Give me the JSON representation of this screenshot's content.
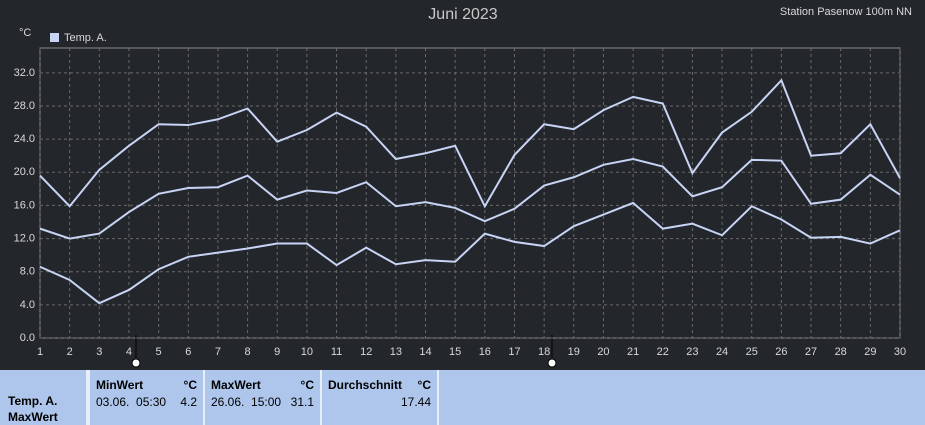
{
  "chart_data": {
    "type": "line",
    "title": "Juni 2023",
    "subtitle": "Station Pasenow 100m NN",
    "y_label": "°C",
    "x": [
      1,
      2,
      3,
      4,
      5,
      6,
      7,
      8,
      9,
      10,
      11,
      12,
      13,
      14,
      15,
      16,
      17,
      18,
      19,
      20,
      21,
      22,
      23,
      24,
      25,
      26,
      27,
      28,
      29,
      30
    ],
    "series": [
      {
        "name": "Temp. A.",
        "color": "#c8d4f5",
        "values": [
          19.6,
          15.9,
          20.3,
          23.2,
          25.8,
          25.7,
          26.4,
          27.7,
          23.7,
          25.1,
          27.2,
          25.5,
          21.6,
          22.3,
          23.2,
          15.9,
          22.1,
          25.8,
          25.2,
          27.5,
          29.1,
          28.3,
          19.9,
          24.8,
          27.3,
          31.1,
          22.0,
          22.3,
          25.8,
          19.3
        ]
      },
      {
        "color": "#c8d4f5",
        "values": [
          13.2,
          12.0,
          12.6,
          15.2,
          17.4,
          18.1,
          18.2,
          19.6,
          16.7,
          17.8,
          17.5,
          18.8,
          15.9,
          16.4,
          15.7,
          14.1,
          15.6,
          18.4,
          19.4,
          20.9,
          21.6,
          20.7,
          17.1,
          18.2,
          21.5,
          21.4,
          16.2,
          16.7,
          19.7,
          17.3
        ]
      },
      {
        "color": "#c8d4f5",
        "values": [
          8.6,
          7.0,
          4.2,
          5.8,
          8.3,
          9.8,
          10.3,
          10.8,
          11.4,
          11.4,
          8.8,
          10.9,
          8.9,
          9.4,
          9.2,
          12.6,
          11.6,
          11.1,
          13.5,
          14.9,
          16.3,
          13.2,
          13.8,
          12.4,
          15.9,
          14.3,
          12.1,
          12.2,
          11.4,
          13.0
        ]
      }
    ],
    "xlim": [
      1,
      30
    ],
    "ylim": [
      0,
      35
    ],
    "xticks": [
      1,
      2,
      3,
      4,
      5,
      6,
      7,
      8,
      9,
      10,
      11,
      12,
      13,
      14,
      15,
      16,
      17,
      18,
      19,
      20,
      21,
      22,
      23,
      24,
      25,
      26,
      27,
      28,
      29,
      30
    ],
    "yticks": [
      {
        "value": 0,
        "label": "0.0"
      },
      {
        "value": 4,
        "label": "4.0"
      },
      {
        "value": 8,
        "label": "8.0"
      },
      {
        "value": 12,
        "label": "12.0"
      },
      {
        "value": 16,
        "label": "16.0"
      },
      {
        "value": 20,
        "label": "20.0"
      },
      {
        "value": 24,
        "label": "24.0"
      },
      {
        "value": 28,
        "label": "28.0"
      },
      {
        "value": 32,
        "label": "32.0"
      }
    ],
    "grid": true
  },
  "summary": {
    "series_label": "Temp. A.",
    "row_label": "MaxWert",
    "columns": [
      {
        "title": "MinWert",
        "unit": "°C",
        "time": "03.06.  05:30",
        "value": 4.2
      },
      {
        "title": "MaxWert",
        "unit": "°C",
        "time": "26.06.  15:00",
        "value": 31.1
      },
      {
        "title": "Durchschnitt",
        "unit": "°C",
        "value": 17.44
      }
    ]
  }
}
